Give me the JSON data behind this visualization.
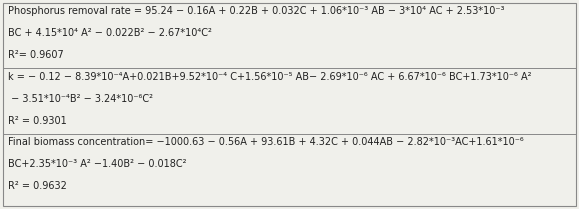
{
  "rows": [
    {
      "lines": [
        "Phosphorus removal rate = 95.24 − 0.16A + 0.22B + 0.032C + 1.06*10⁻³ AB − 3*10⁴ AC + 2.53*10⁻³",
        "BC + 4.15*10⁴ A² − 0.022B² − 2.67*10⁴C²",
        "R²= 0.9607"
      ]
    },
    {
      "lines": [
        "k = − 0.12 − 8.39*10⁻⁴A+0.021B+9.52*10⁻⁴ C+1.56*10⁻⁵ AB− 2.69*10⁻⁶ AC + 6.67*10⁻⁶ BC+1.73*10⁻⁶ A²",
        " − 3.51*10⁻⁴B² − 3.24*10⁻⁶C²",
        "R² = 0.9301"
      ]
    },
    {
      "lines": [
        "Final biomass concentration= −1000.63 − 0.56A + 93.61B + 4.32C + 0.044AB − 2.82*10⁻³AC+1.61*10⁻⁶",
        "BC+2.35*10⁻³ A² −1.40B² − 0.018C²",
        "R² = 0.9632"
      ]
    }
  ],
  "bg_color": "#f0f0eb",
  "border_color": "#888888",
  "text_color": "#222222",
  "font_size": 7.0,
  "fig_width": 5.79,
  "fig_height": 2.09,
  "dpi": 100
}
